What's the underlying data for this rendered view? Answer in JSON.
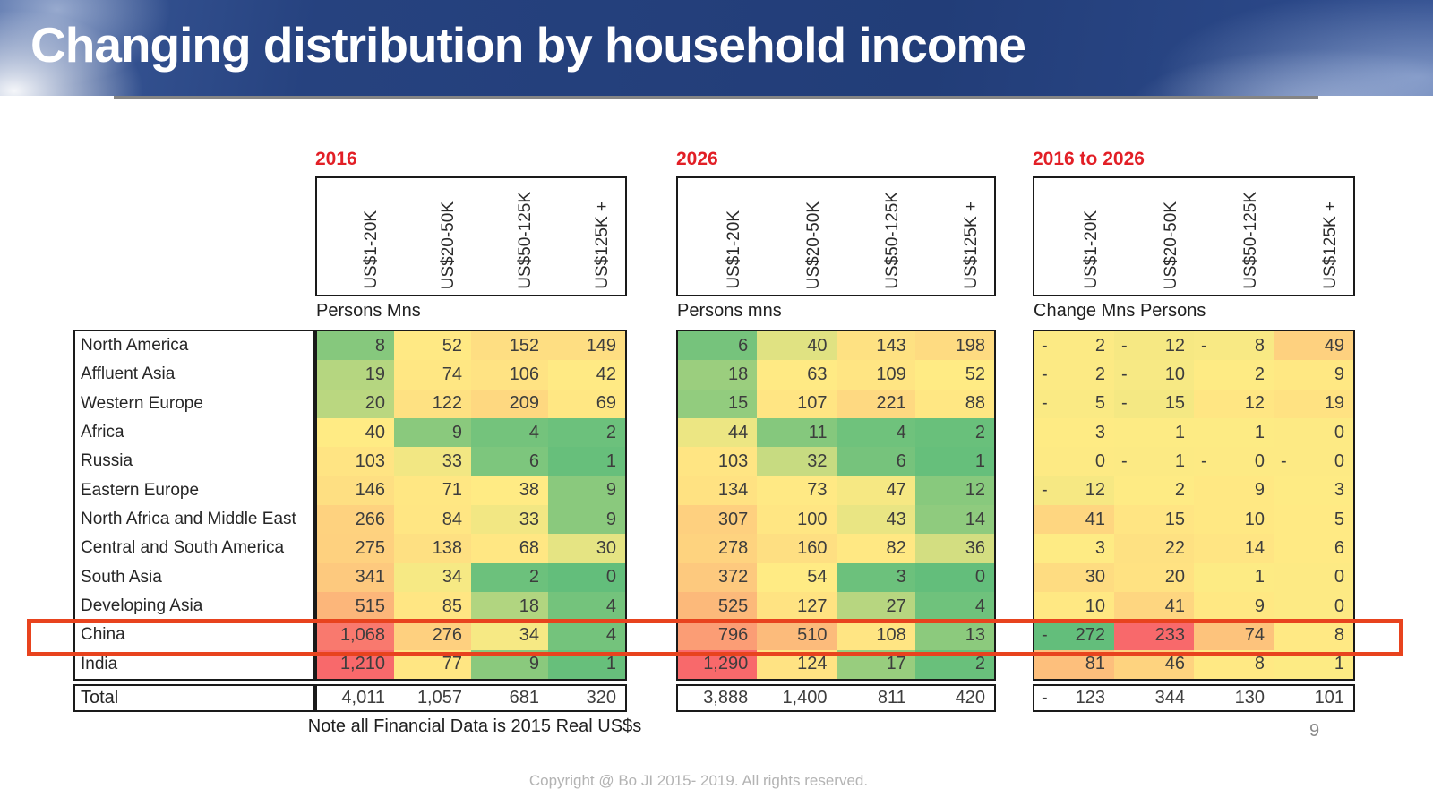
{
  "slide": {
    "title": "Changing distribution by household income",
    "note": "Note all Financial Data is 2015 Real US$s",
    "copyright": "Copyright @ Bo JI 2015- 2019. All rights reserved.",
    "page_number": "9"
  },
  "labels": {
    "total": "Total"
  },
  "regions": [
    "North America",
    "Affluent Asia",
    "Western Europe",
    "Africa",
    "Russia",
    "Eastern Europe",
    "North Africa and Middle East",
    "Central and South America",
    "South Asia",
    "Developing Asia",
    "China",
    "India"
  ],
  "highlight": {
    "region": "China"
  },
  "colors": {
    "scale_min": "#63BE7B",
    "scale_mid": "#FFEB84",
    "scale_max": "#F8696B",
    "year_label": "#E21F26",
    "highlight_box": "#E8431E",
    "header_blue": "#24407C"
  },
  "chart_data": [
    {
      "type": "heatmap",
      "year_label": "2016",
      "unit_label": "Persons Mns",
      "columns": [
        "US$1-20K",
        "US$20-50K",
        "US$50-125K",
        "US$125K +"
      ],
      "color_scale": {
        "min": 0,
        "mid": 36,
        "max": 1210
      },
      "values": [
        [
          "8",
          "52",
          "152",
          "149"
        ],
        [
          "19",
          "74",
          "106",
          "42"
        ],
        [
          "20",
          "122",
          "209",
          "69"
        ],
        [
          "40",
          "9",
          "4",
          "2"
        ],
        [
          "103",
          "33",
          "6",
          "1"
        ],
        [
          "146",
          "71",
          "38",
          "9"
        ],
        [
          "266",
          "84",
          "33",
          "9"
        ],
        [
          "275",
          "138",
          "68",
          "30"
        ],
        [
          "341",
          "34",
          "2",
          "0"
        ],
        [
          "515",
          "85",
          "18",
          "4"
        ],
        [
          "1,068",
          "276",
          "34",
          "4"
        ],
        [
          "1,210",
          "77",
          "9",
          "1"
        ]
      ],
      "total": [
        "4,011",
        "1,057",
        "681",
        "320"
      ]
    },
    {
      "type": "heatmap",
      "year_label": "2026",
      "unit_label": "Persons mns",
      "columns": [
        "US$1-20K",
        "US$20-50K",
        "US$50-125K",
        "US$125K +"
      ],
      "color_scale": {
        "min": 0,
        "mid": 50,
        "max": 1290
      },
      "values": [
        [
          "6",
          "40",
          "143",
          "198"
        ],
        [
          "18",
          "63",
          "109",
          "52"
        ],
        [
          "15",
          "107",
          "221",
          "88"
        ],
        [
          "44",
          "11",
          "4",
          "2"
        ],
        [
          "103",
          "32",
          "6",
          "1"
        ],
        [
          "134",
          "73",
          "47",
          "12"
        ],
        [
          "307",
          "100",
          "43",
          "14"
        ],
        [
          "278",
          "160",
          "82",
          "36"
        ],
        [
          "372",
          "54",
          "3",
          "0"
        ],
        [
          "525",
          "127",
          "27",
          "4"
        ],
        [
          "796",
          "510",
          "108",
          "13"
        ],
        [
          "1,290",
          "124",
          "17",
          "2"
        ]
      ],
      "total": [
        "3,888",
        "1,400",
        "811",
        "420"
      ]
    },
    {
      "type": "heatmap",
      "year_label": "2016 to 2026",
      "unit_label": "Change Mns Persons",
      "columns": [
        "US$1-20K",
        "US$20-50K",
        "US$50-125K",
        "US$125K +"
      ],
      "color_scale": {
        "min": -272,
        "mid": 4,
        "max": 233
      },
      "values": [
        [
          "-2",
          "-12",
          "-8",
          "49"
        ],
        [
          "-2",
          "-10",
          "2",
          "9"
        ],
        [
          "-5",
          "-15",
          "12",
          "19"
        ],
        [
          "3",
          "1",
          "1",
          "0"
        ],
        [
          "0",
          "-1",
          "-0",
          "-0"
        ],
        [
          "-12",
          "2",
          "9",
          "3"
        ],
        [
          "41",
          "15",
          "10",
          "5"
        ],
        [
          "3",
          "22",
          "14",
          "6"
        ],
        [
          "30",
          "20",
          "1",
          "0"
        ],
        [
          "10",
          "41",
          "9",
          "0"
        ],
        [
          "-272",
          "233",
          "74",
          "8"
        ],
        [
          "81",
          "46",
          "8",
          "1"
        ]
      ],
      "total": [
        "-123",
        "344",
        "130",
        "101"
      ]
    }
  ]
}
